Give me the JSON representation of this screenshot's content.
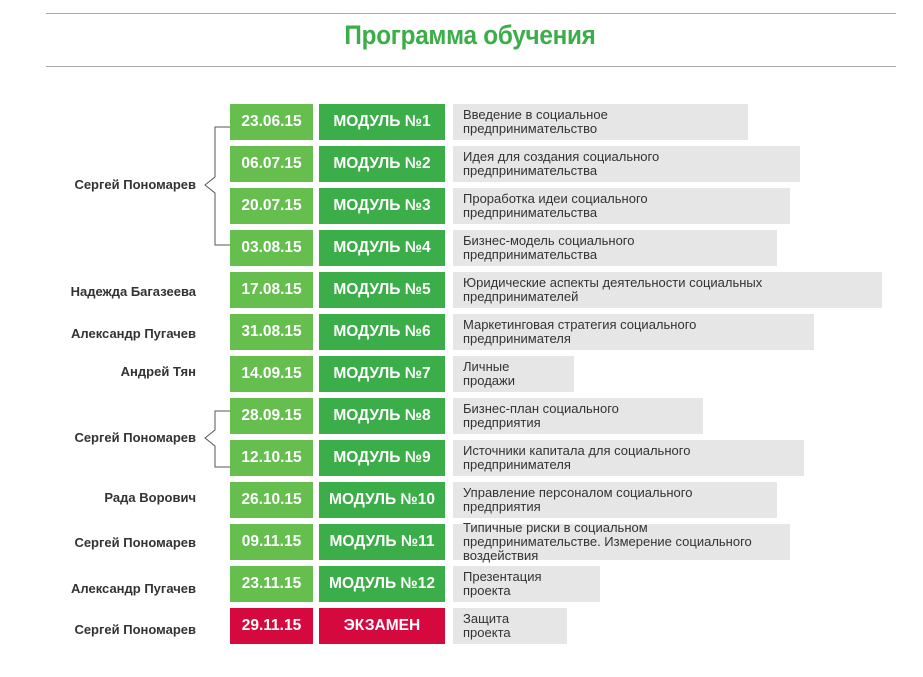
{
  "title": "Программа обучения",
  "rows": [
    {
      "date": "23.06.15",
      "module": "МОДУЛЬ №1",
      "topic": "Введение в социальное предпринимательство"
    },
    {
      "date": "06.07.15",
      "module": "МОДУЛЬ №2",
      "topic": "Идея для создания социального предпринимательства"
    },
    {
      "date": "20.07.15",
      "module": "МОДУЛЬ №3",
      "topic": "Проработка идеи социального предпринимательства"
    },
    {
      "date": "03.08.15",
      "module": "МОДУЛЬ №4",
      "topic": "Бизнес-модель социального предпринимательства"
    },
    {
      "date": "17.08.15",
      "module": "МОДУЛЬ №5",
      "topic": "Юридические аспекты деятельности социальных предпринимателей"
    },
    {
      "date": "31.08.15",
      "module": "МОДУЛЬ №6",
      "topic": "Маркетинговая стратегия социального предпринимателя"
    },
    {
      "date": "14.09.15",
      "module": "МОДУЛЬ №7",
      "topic": "Личные продажи"
    },
    {
      "date": "28.09.15",
      "module": "МОДУЛЬ №8",
      "topic": "Бизнес-план социального предприятия"
    },
    {
      "date": "12.10.15",
      "module": "МОДУЛЬ №9",
      "topic": "Источники капитала для социального предпринимателя"
    },
    {
      "date": "26.10.15",
      "module": "МОДУЛЬ №10",
      "topic": "Управление персоналом социального предприятия"
    },
    {
      "date": "09.11.15",
      "module": "МОДУЛЬ №11",
      "topic": "Типичные риски в социальном предпринимательстве. Измерение социального воздействия"
    },
    {
      "date": "23.11.15",
      "module": "МОДУЛЬ №12",
      "topic": "Презентация проекта"
    },
    {
      "date": "29.11.15",
      "module": "ЭКЗАМЕН",
      "topic": "Защита проекта"
    }
  ],
  "speakers": [
    {
      "name": "Сергей Пономарев"
    },
    {
      "name": "Надежда Багазеева"
    },
    {
      "name": "Александр Пугачев"
    },
    {
      "name": "Андрей Тян"
    },
    {
      "name": "Сергей Пономарев"
    },
    {
      "name": "Рада Ворович"
    },
    {
      "name": "Сергей Пономарев"
    },
    {
      "name": "Александр Пугачев"
    },
    {
      "name": "Сергей Пономарев"
    }
  ],
  "colors": {
    "title": "#3cae49",
    "date_bg": "#66be4f",
    "module_bg": "#3cae49",
    "exam_bg": "#d6093f",
    "topic_bg": "#e6e6e6"
  }
}
